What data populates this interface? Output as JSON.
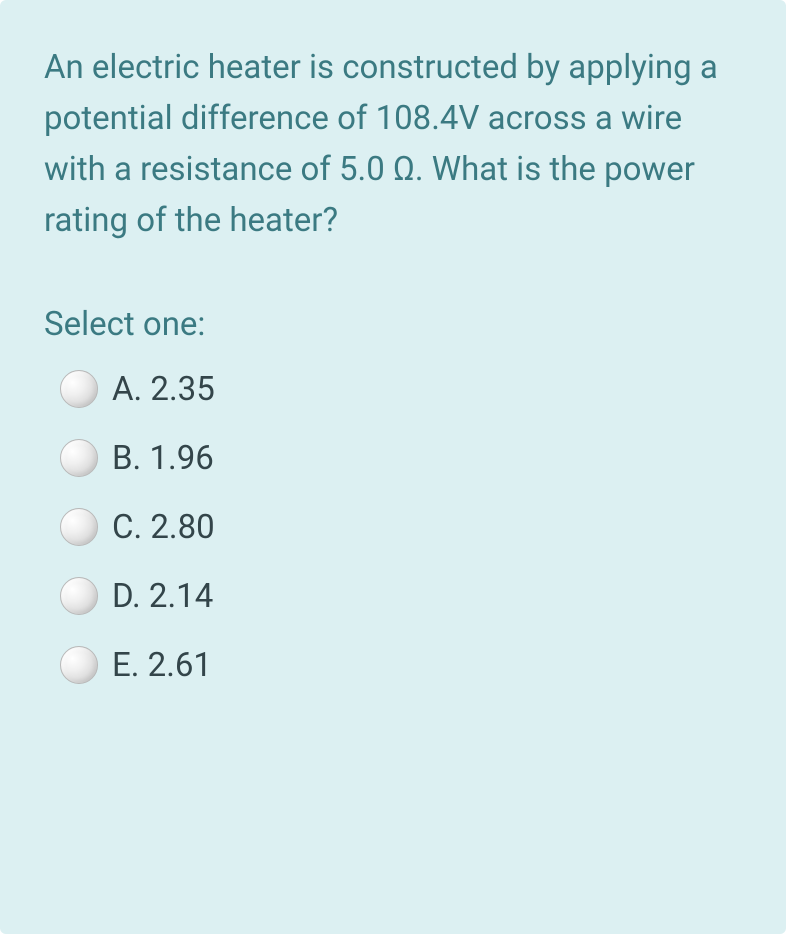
{
  "card": {
    "background_color": "#dcf0f2",
    "text_color": "#3b7a82",
    "option_text_color": "#33454a",
    "font_size_pt": 25
  },
  "question": {
    "text": "An electric heater is constructed by applying a potential difference of 108.4V across a wire with a resistance of 5.0 Ω. What is the power rating of the heater?"
  },
  "prompt": "Select one:",
  "options": [
    {
      "label": "A. 2.35"
    },
    {
      "label": "B. 1.96"
    },
    {
      "label": "C. 2.80"
    },
    {
      "label": "D. 2.14"
    },
    {
      "label": "E. 2.61"
    }
  ]
}
